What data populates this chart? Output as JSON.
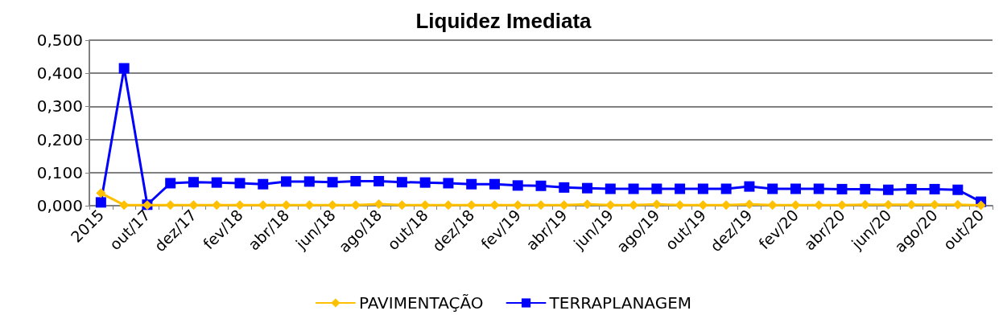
{
  "chart_data": {
    "type": "line",
    "title": "Liquidez Imediata",
    "categories": [
      "2015",
      null,
      "out/17",
      null,
      "dez/17",
      null,
      "fev/18",
      null,
      "abr/18",
      null,
      "jun/18",
      null,
      "ago/18",
      null,
      "out/18",
      null,
      "dez/18",
      null,
      "fev/19",
      null,
      "abr/19",
      null,
      "jun/19",
      null,
      "ago/19",
      null,
      "out/19",
      null,
      "dez/19",
      null,
      "fev/20",
      null,
      "abr/20",
      null,
      "jun/20",
      null,
      "ago/20",
      null,
      "out/20"
    ],
    "series": [
      {
        "name": "PAVIMENTAÇÃO",
        "color": "#ffc000",
        "marker": "diamond",
        "values": [
          0.038,
          0.002,
          0.002,
          0.002,
          0.002,
          0.002,
          0.002,
          0.002,
          0.002,
          0.002,
          0.002,
          0.002,
          0.005,
          0.002,
          0.002,
          0.002,
          0.002,
          0.002,
          0.002,
          0.002,
          0.002,
          0.004,
          0.002,
          0.002,
          0.004,
          0.002,
          0.002,
          0.002,
          0.004,
          0.002,
          0.002,
          0.002,
          0.002,
          0.003,
          0.003,
          0.003,
          0.003,
          0.003,
          0.001
        ]
      },
      {
        "name": "TERRAPLANAGEM",
        "color": "#0000ff",
        "marker": "square",
        "values": [
          0.01,
          0.415,
          0.003,
          0.068,
          0.071,
          0.07,
          0.068,
          0.065,
          0.073,
          0.073,
          0.071,
          0.074,
          0.074,
          0.071,
          0.07,
          0.068,
          0.065,
          0.065,
          0.061,
          0.06,
          0.055,
          0.053,
          0.051,
          0.051,
          0.051,
          0.051,
          0.051,
          0.051,
          0.058,
          0.051,
          0.051,
          0.051,
          0.05,
          0.05,
          0.048,
          0.05,
          0.05,
          0.048,
          0.012
        ]
      }
    ],
    "ylim": [
      0,
      0.5
    ],
    "yticks": [
      {
        "value": 0,
        "label": "0,000"
      },
      {
        "value": 0.1,
        "label": "0,100"
      },
      {
        "value": 0.2,
        "label": "0,200"
      },
      {
        "value": 0.3,
        "label": "0,300"
      },
      {
        "value": 0.4,
        "label": "0,400"
      },
      {
        "value": 0.5,
        "label": "0,500"
      }
    ],
    "grid": "y",
    "legend": "bottom",
    "line_style": "solid"
  }
}
